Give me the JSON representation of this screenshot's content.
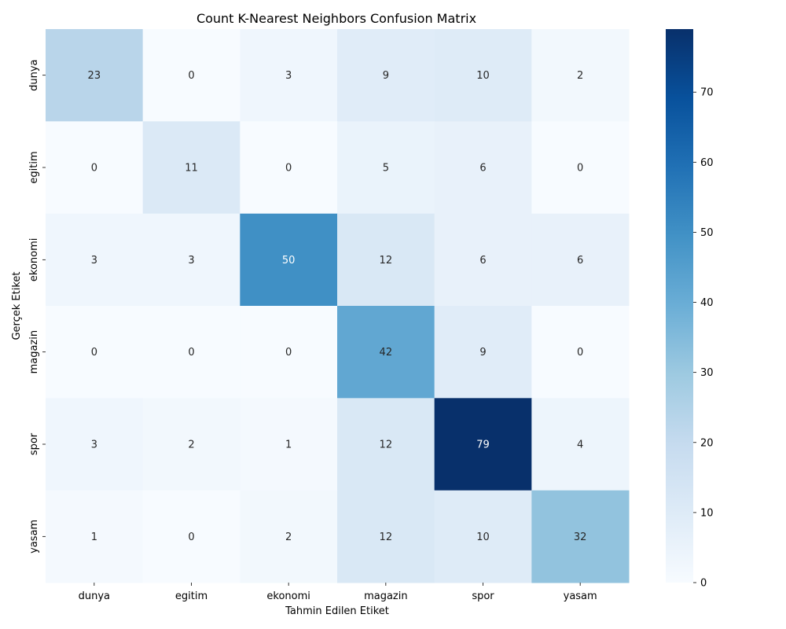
{
  "chart_data": {
    "type": "heatmap",
    "title": "Count K-Nearest Neighbors Confusion Matrix",
    "xlabel": "Tahmin Edilen Etiket",
    "ylabel": "Gerçek Etiket",
    "x_categories": [
      "dunya",
      "egitim",
      "ekonomi",
      "magazin",
      "spor",
      "yasam"
    ],
    "y_categories": [
      "dunya",
      "egitim",
      "ekonomi",
      "magazin",
      "spor",
      "yasam"
    ],
    "values": [
      [
        23,
        0,
        3,
        9,
        10,
        2
      ],
      [
        0,
        11,
        0,
        5,
        6,
        0
      ],
      [
        3,
        3,
        50,
        12,
        6,
        6
      ],
      [
        0,
        0,
        0,
        42,
        9,
        0
      ],
      [
        3,
        2,
        1,
        12,
        79,
        4
      ],
      [
        1,
        0,
        2,
        12,
        10,
        32
      ]
    ],
    "colormap": "Blues",
    "color_range": [
      0,
      79
    ],
    "colorbar_ticks": [
      0,
      10,
      20,
      30,
      40,
      50,
      60,
      70
    ],
    "grid": false,
    "colorbar_position": "right"
  }
}
